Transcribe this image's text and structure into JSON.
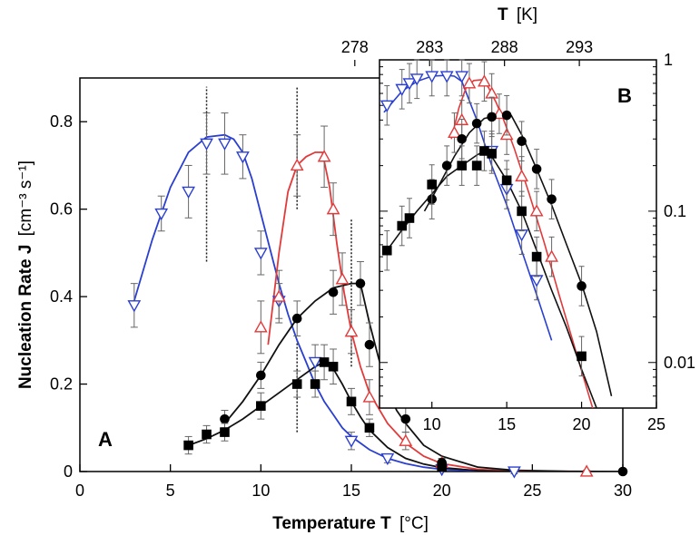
{
  "chart_data": [
    {
      "type": "line",
      "panel_label": "A",
      "xlabel": "Temperature T",
      "xlabel_unit": "[°C]",
      "ylabel": "Nucleation Rate J",
      "ylabel_unit": "[cm⁻³ s⁻¹]",
      "xlim": [
        0,
        30
      ],
      "ylim": [
        0,
        0.9
      ],
      "xticks": [
        "0",
        "5",
        "10",
        "15",
        "20",
        "25",
        "30"
      ],
      "yticks": [
        "0",
        "0.2",
        "0.4",
        "0.6",
        "0.8"
      ],
      "colors": {
        "blue": "#2a3fd0",
        "red": "#e23a3a",
        "black": "#111111"
      },
      "series": [
        {
          "color": "blue",
          "marker": "triangle-down",
          "points": [
            [
              3,
              0.38
            ],
            [
              4.5,
              0.59
            ],
            [
              6,
              0.64
            ],
            [
              7,
              0.75
            ],
            [
              8,
              0.75
            ],
            [
              9,
              0.72
            ],
            [
              10,
              0.5
            ],
            [
              11,
              0.39
            ],
            [
              13,
              0.25
            ],
            [
              15,
              0.07
            ],
            [
              17,
              0.03
            ],
            [
              20,
              0.005
            ],
            [
              24,
              0.0
            ]
          ],
          "errors": [
            0.05,
            0.04,
            0.06,
            0.07,
            0.07,
            0.05,
            0.05,
            0.04,
            0.04,
            0.02,
            0.01,
            0.005,
            0.005
          ],
          "fit": [
            [
              3,
              0.39
            ],
            [
              4,
              0.53
            ],
            [
              5,
              0.65
            ],
            [
              6,
              0.73
            ],
            [
              7,
              0.765
            ],
            [
              8,
              0.77
            ],
            [
              8.5,
              0.76
            ],
            [
              9,
              0.73
            ],
            [
              9.5,
              0.67
            ],
            [
              10,
              0.59
            ],
            [
              10.5,
              0.51
            ],
            [
              11,
              0.43
            ],
            [
              11.5,
              0.36
            ],
            [
              12,
              0.3
            ],
            [
              12.5,
              0.25
            ],
            [
              13,
              0.2
            ],
            [
              13.5,
              0.16
            ],
            [
              14,
              0.13
            ],
            [
              14.5,
              0.1
            ],
            [
              15,
              0.08
            ],
            [
              16,
              0.05
            ],
            [
              17,
              0.03
            ],
            [
              18,
              0.018
            ],
            [
              19,
              0.01
            ],
            [
              20,
              0.005
            ],
            [
              22,
              0.001
            ],
            [
              24,
              0.0
            ]
          ]
        },
        {
          "color": "red",
          "marker": "triangle-up",
          "points": [
            [
              10,
              0.33
            ],
            [
              11,
              0.4
            ],
            [
              12,
              0.7
            ],
            [
              13.5,
              0.72
            ],
            [
              14,
              0.6
            ],
            [
              14.5,
              0.44
            ],
            [
              15,
              0.32
            ],
            [
              16,
              0.17
            ],
            [
              18,
              0.07
            ],
            [
              20,
              0.02
            ],
            [
              28,
              0.0
            ]
          ],
          "errors": [
            0.06,
            0.06,
            0.07,
            0.07,
            0.06,
            0.06,
            0.05,
            0.04,
            0.02,
            0.01,
            0.003
          ],
          "fit": [
            [
              10.4,
              0.29
            ],
            [
              11,
              0.5
            ],
            [
              11.5,
              0.64
            ],
            [
              12,
              0.7
            ],
            [
              12.5,
              0.72
            ],
            [
              13,
              0.73
            ],
            [
              13.4,
              0.73
            ],
            [
              13.8,
              0.65
            ],
            [
              14.2,
              0.52
            ],
            [
              14.6,
              0.41
            ],
            [
              15,
              0.32
            ],
            [
              15.5,
              0.24
            ],
            [
              16,
              0.18
            ],
            [
              17,
              0.11
            ],
            [
              18,
              0.065
            ],
            [
              19,
              0.035
            ],
            [
              20,
              0.018
            ],
            [
              22,
              0.005
            ],
            [
              24,
              0.001
            ],
            [
              28,
              0.0
            ]
          ]
        },
        {
          "color": "black",
          "marker": "circle",
          "points": [
            [
              8,
              0.12
            ],
            [
              10,
              0.22
            ],
            [
              12,
              0.35
            ],
            [
              14,
              0.41
            ],
            [
              15.5,
              0.43
            ],
            [
              16,
              0.29
            ],
            [
              17,
              0.19
            ],
            [
              18,
              0.12
            ],
            [
              20,
              0.02
            ],
            [
              30,
              0.0
            ]
          ],
          "errors": [
            0.02,
            0.03,
            0.04,
            0.05,
            0.05,
            0.05,
            0.04,
            0.03,
            0.01,
            0.003
          ],
          "fit": [
            [
              8,
              0.11
            ],
            [
              9,
              0.16
            ],
            [
              10,
              0.22
            ],
            [
              11,
              0.29
            ],
            [
              12,
              0.35
            ],
            [
              13,
              0.39
            ],
            [
              14,
              0.42
            ],
            [
              15,
              0.43
            ],
            [
              15.5,
              0.43
            ],
            [
              16,
              0.34
            ],
            [
              16.5,
              0.26
            ],
            [
              17,
              0.19
            ],
            [
              17.5,
              0.14
            ],
            [
              18,
              0.11
            ],
            [
              19,
              0.06
            ],
            [
              20,
              0.035
            ],
            [
              22,
              0.01
            ],
            [
              24,
              0.003
            ],
            [
              27,
              0.0005
            ],
            [
              30,
              0.0
            ]
          ]
        },
        {
          "color": "black",
          "marker": "square",
          "points": [
            [
              6,
              0.06
            ],
            [
              7,
              0.085
            ],
            [
              8,
              0.09
            ],
            [
              10,
              0.15
            ],
            [
              12,
              0.2
            ],
            [
              13,
              0.2
            ],
            [
              13.5,
              0.25
            ],
            [
              14,
              0.24
            ],
            [
              15,
              0.16
            ],
            [
              16,
              0.1
            ],
            [
              20,
              0.01
            ]
          ],
          "errors": [
            0.02,
            0.02,
            0.02,
            0.03,
            0.03,
            0.03,
            0.04,
            0.04,
            0.03,
            0.02,
            0.005
          ],
          "fit": [
            [
              6,
              0.06
            ],
            [
              7,
              0.075
            ],
            [
              8,
              0.095
            ],
            [
              9,
              0.12
            ],
            [
              10,
              0.15
            ],
            [
              11,
              0.18
            ],
            [
              12,
              0.21
            ],
            [
              13,
              0.24
            ],
            [
              13.5,
              0.25
            ],
            [
              14,
              0.235
            ],
            [
              14.5,
              0.2
            ],
            [
              15,
              0.16
            ],
            [
              15.5,
              0.125
            ],
            [
              16,
              0.095
            ],
            [
              17,
              0.055
            ],
            [
              18,
              0.03
            ],
            [
              19,
              0.017
            ],
            [
              20,
              0.009
            ],
            [
              22,
              0.002
            ],
            [
              24,
              0.0
            ]
          ]
        }
      ],
      "reference_lines_x": [
        7,
        12,
        15
      ]
    },
    {
      "type": "line",
      "panel_label": "B",
      "yscale": "log",
      "xlim": [
        6.5,
        25
      ],
      "ylim": [
        0.005,
        1
      ],
      "xticks": [
        "10",
        "15",
        "20",
        "25"
      ],
      "yticks": [
        "0.01",
        "0.1",
        "1"
      ],
      "top_axis_label": "T",
      "top_axis_unit": "[K]",
      "top_ticks": [
        "278",
        "283",
        "288",
        "293"
      ],
      "series": [
        {
          "color": "blue",
          "marker": "triangle-down",
          "points": [
            [
              7,
              0.5
            ],
            [
              8,
              0.64
            ],
            [
              8.5,
              0.7
            ],
            [
              9,
              0.75
            ],
            [
              10,
              0.78
            ],
            [
              11,
              0.78
            ],
            [
              12,
              0.78
            ],
            [
              14,
              0.25
            ],
            [
              15,
              0.14
            ],
            [
              16,
              0.07
            ],
            [
              17,
              0.035
            ]
          ],
          "fit": [
            [
              6.8,
              0.45
            ],
            [
              8,
              0.62
            ],
            [
              9,
              0.72
            ],
            [
              10,
              0.78
            ],
            [
              11,
              0.79
            ],
            [
              11.5,
              0.78
            ],
            [
              12,
              0.72
            ],
            [
              13,
              0.4
            ],
            [
              14,
              0.2
            ],
            [
              15,
              0.11
            ],
            [
              16,
              0.055
            ],
            [
              17,
              0.028
            ],
            [
              18,
              0.014
            ]
          ]
        },
        {
          "color": "red",
          "marker": "triangle-up",
          "points": [
            [
              11.5,
              0.33
            ],
            [
              12,
              0.4
            ],
            [
              12.5,
              0.7
            ],
            [
              13.5,
              0.72
            ],
            [
              14,
              0.6
            ],
            [
              14.5,
              0.44
            ],
            [
              15,
              0.32
            ],
            [
              16,
              0.17
            ],
            [
              17,
              0.1
            ],
            [
              18,
              0.05
            ]
          ],
          "fit": [
            [
              11.3,
              0.3
            ],
            [
              11.8,
              0.48
            ],
            [
              12.3,
              0.66
            ],
            [
              12.8,
              0.73
            ],
            [
              13.4,
              0.74
            ],
            [
              13.8,
              0.65
            ],
            [
              14.3,
              0.52
            ],
            [
              14.8,
              0.4
            ],
            [
              15.5,
              0.26
            ],
            [
              16.5,
              0.13
            ],
            [
              17.5,
              0.062
            ],
            [
              18.5,
              0.028
            ],
            [
              19.5,
              0.013
            ],
            [
              20.5,
              0.006
            ],
            [
              21.5,
              0.0028
            ]
          ]
        },
        {
          "color": "black",
          "marker": "circle",
          "points": [
            [
              10,
              0.12
            ],
            [
              11,
              0.2
            ],
            [
              12,
              0.3
            ],
            [
              13,
              0.38
            ],
            [
              14,
              0.42
            ],
            [
              15,
              0.43
            ],
            [
              16,
              0.29
            ],
            [
              17,
              0.19
            ],
            [
              18,
              0.12
            ],
            [
              20,
              0.032
            ]
          ],
          "fit": [
            [
              9.5,
              0.1
            ],
            [
              10.5,
              0.15
            ],
            [
              11.5,
              0.23
            ],
            [
              12.5,
              0.33
            ],
            [
              13.5,
              0.41
            ],
            [
              14.5,
              0.43
            ],
            [
              15.3,
              0.43
            ],
            [
              16,
              0.32
            ],
            [
              17,
              0.19
            ],
            [
              18,
              0.11
            ],
            [
              19,
              0.06
            ],
            [
              20,
              0.033
            ],
            [
              21,
              0.016
            ],
            [
              22,
              0.006
            ]
          ]
        },
        {
          "color": "black",
          "marker": "square",
          "points": [
            [
              7,
              0.055
            ],
            [
              8,
              0.08
            ],
            [
              8.5,
              0.09
            ],
            [
              10,
              0.15
            ],
            [
              12,
              0.2
            ],
            [
              13,
              0.2
            ],
            [
              13.5,
              0.25
            ],
            [
              14,
              0.24
            ],
            [
              15,
              0.16
            ],
            [
              16,
              0.1
            ],
            [
              17,
              0.05
            ],
            [
              20,
              0.011
            ]
          ],
          "fit": [
            [
              7,
              0.055
            ],
            [
              8,
              0.075
            ],
            [
              9,
              0.1
            ],
            [
              10,
              0.13
            ],
            [
              11,
              0.17
            ],
            [
              12,
              0.2
            ],
            [
              13,
              0.235
            ],
            [
              13.5,
              0.25
            ],
            [
              14,
              0.23
            ],
            [
              15,
              0.16
            ],
            [
              16,
              0.1
            ],
            [
              17,
              0.055
            ],
            [
              18,
              0.03
            ],
            [
              19,
              0.017
            ],
            [
              20,
              0.009
            ],
            [
              21,
              0.005
            ],
            [
              21.8,
              0.0028
            ]
          ]
        }
      ]
    }
  ]
}
